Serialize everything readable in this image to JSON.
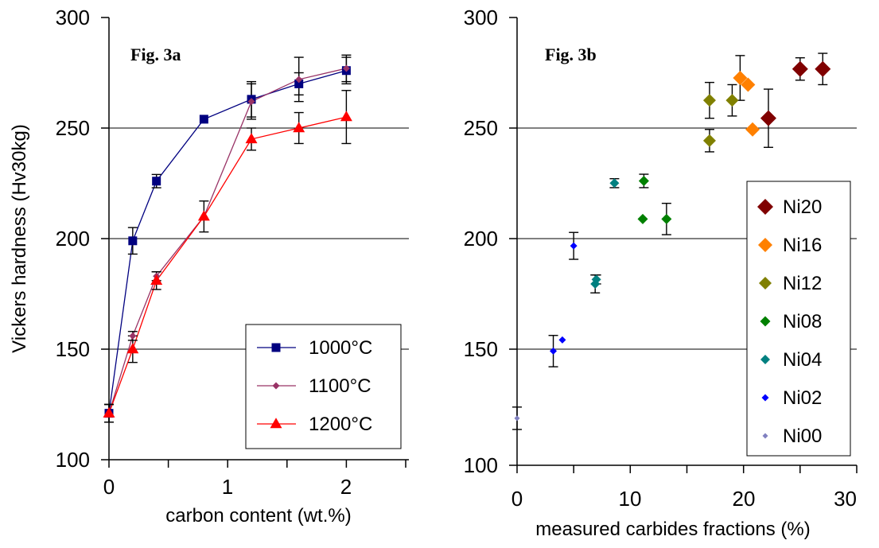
{
  "chart_data": [
    {
      "type": "line",
      "annotation": "Fig. 3a",
      "xlabel": "carbon content (wt.%)",
      "ylabel": "Vickers hardness (Hv30kg)",
      "xlim": [
        0,
        2.5
      ],
      "ylim": [
        100,
        300
      ],
      "xticks": [
        "0",
        "1",
        "2"
      ],
      "yticks": [
        "100",
        "150",
        "200",
        "250",
        "300"
      ],
      "grid": "horizontal",
      "legend_position": "bottom-right",
      "x": [
        0,
        0.2,
        0.4,
        0.8,
        1.2,
        1.6,
        2.0
      ],
      "series": [
        {
          "name": "1000°C",
          "color": "#000080",
          "marker": "square",
          "values": [
            121,
            199,
            226,
            254,
            263,
            270,
            276
          ],
          "errors": [
            4,
            6,
            3,
            0,
            8,
            5,
            6
          ]
        },
        {
          "name": "1100°C",
          "color": "#993366",
          "marker": "diamond",
          "values": [
            121,
            156,
            183,
            210,
            262,
            272,
            277
          ],
          "errors": [
            4,
            2,
            2,
            0,
            8,
            10,
            6
          ]
        },
        {
          "name": "1200°C",
          "color": "#ff0000",
          "marker": "triangle",
          "values": [
            121,
            150,
            181,
            210,
            245,
            250,
            255
          ],
          "errors": [
            4,
            6,
            4,
            7,
            5,
            7,
            12
          ]
        }
      ]
    },
    {
      "type": "scatter",
      "annotation": "Fig. 3b",
      "xlabel": "measured carbides fractions (%)",
      "ylabel": "",
      "xlim": [
        0,
        30
      ],
      "ylim": [
        100,
        300
      ],
      "xticks": [
        "0",
        "10",
        "20",
        "30"
      ],
      "yticks": [
        "100",
        "150",
        "200",
        "250",
        "300"
      ],
      "grid": "horizontal",
      "legend_position": "right",
      "series": [
        {
          "name": "Ni20",
          "color": "#800000",
          "size": 10,
          "points": [
            [
              22.2,
              255,
              13
            ],
            [
              25,
              277,
              5
            ],
            [
              27,
              277,
              7
            ]
          ]
        },
        {
          "name": "Ni16",
          "color": "#ff8000",
          "size": 9,
          "points": [
            [
              19.7,
              273,
              10
            ],
            [
              20.4,
              270,
              0
            ],
            [
              20.8,
              250,
              0
            ]
          ]
        },
        {
          "name": "Ni12",
          "color": "#808000",
          "size": 8,
          "points": [
            [
              17,
              245,
              5
            ],
            [
              17,
              263,
              8
            ],
            [
              19,
              263,
              7
            ]
          ]
        },
        {
          "name": "Ni08",
          "color": "#008000",
          "size": 6.5,
          "points": [
            [
              11.1,
              210,
              0
            ],
            [
              11.2,
              227,
              3
            ],
            [
              13.2,
              210,
              7
            ]
          ]
        },
        {
          "name": "Ni04",
          "color": "#008080",
          "size": 6,
          "points": [
            [
              6.9,
              181,
              4
            ],
            [
              7,
              183,
              2
            ],
            [
              8.6,
              226,
              2
            ]
          ]
        },
        {
          "name": "Ni02",
          "color": "#0000ff",
          "size": 4.5,
          "points": [
            [
              3.2,
              151,
              7
            ],
            [
              4,
              156,
              0
            ],
            [
              5,
              198,
              6
            ]
          ]
        },
        {
          "name": "Ni00",
          "color": "#8080c0",
          "size": 3.5,
          "points": [
            [
              0,
              121,
              5
            ]
          ]
        }
      ]
    }
  ]
}
